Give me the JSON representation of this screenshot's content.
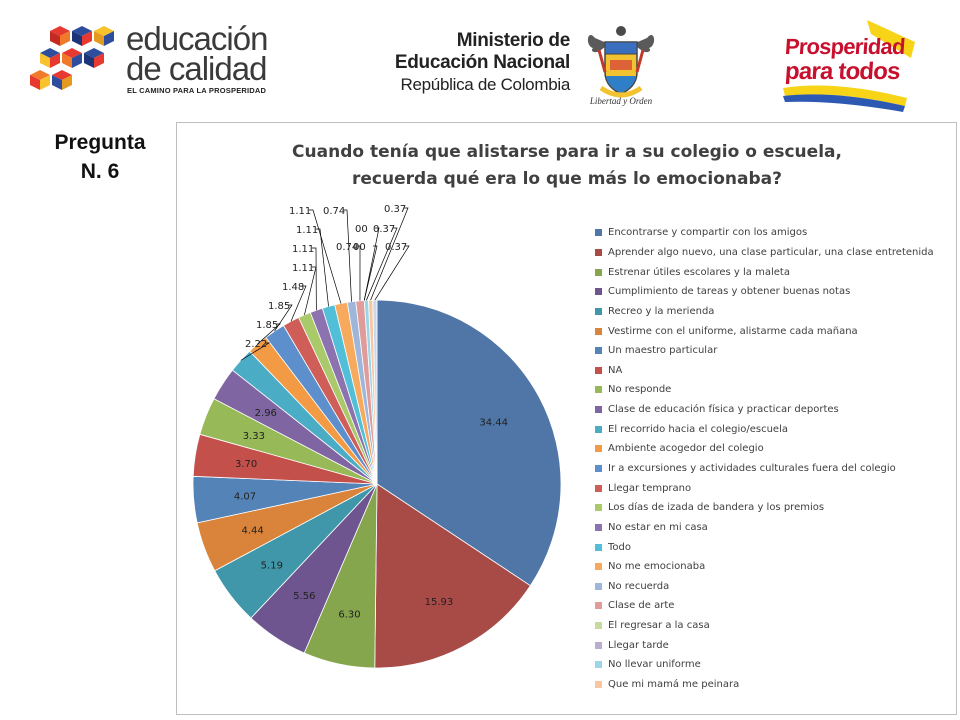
{
  "header": {
    "edu_logo": {
      "line1": "educación",
      "line2": "de calidad",
      "tagline": "EL CAMINO PARA LA PROSPERIDAD"
    },
    "ministry": {
      "line1": "Ministerio de",
      "line2": "Educación Nacional",
      "line3": "República de Colombia"
    },
    "seal_caption": "Libertad y Orden",
    "prosperity": {
      "line1": "Prosperidad",
      "line2": "para todos"
    }
  },
  "side_label": {
    "line1": "Pregunta",
    "line2": "N. 6"
  },
  "chart_data": {
    "type": "pie",
    "title_line1": "Cuando tenía que alistarse para ir  a su colegio o escuela,",
    "title_line2": "recuerda qué era lo que más lo emocionaba?",
    "legend_position": "right",
    "slices": [
      {
        "label": "Encontrarse y compartir con los amigos",
        "value": 34.44,
        "value_label": "34.44",
        "color": "#4f76a6"
      },
      {
        "label": "Aprender algo nuevo, una clase particular, una clase entretenida",
        "value": 15.93,
        "value_label": "15.93",
        "color": "#a84b47"
      },
      {
        "label": "Estrenar útiles escolares y la maleta",
        "value": 6.3,
        "value_label": "6.30",
        "color": "#86a64e"
      },
      {
        "label": "Cumplimiento de tareas y obtener buenas notas",
        "value": 5.56,
        "value_label": "5.56",
        "color": "#6e5590"
      },
      {
        "label": "Recreo y la merienda",
        "value": 5.19,
        "value_label": "5.19",
        "color": "#3f97a9"
      },
      {
        "label": "Vestirme con el uniforme, alistarme cada mañana",
        "value": 4.44,
        "value_label": "4.44",
        "color": "#d9843a"
      },
      {
        "label": "Un maestro particular",
        "value": 4.07,
        "value_label": "4.07",
        "color": "#5483b8"
      },
      {
        "label": "NA",
        "value": 3.7,
        "value_label": "3.70",
        "color": "#c4504b"
      },
      {
        "label": "No responde",
        "value": 3.33,
        "value_label": "3.33",
        "color": "#98b957"
      },
      {
        "label": "Clase de educación física y practicar deportes",
        "value": 2.96,
        "value_label": "2.96",
        "color": "#7f65a1"
      },
      {
        "label": "El recorrido hacia el colegio/escuela",
        "value": 2.22,
        "value_label": "2.22",
        "color": "#4bacc6"
      },
      {
        "label": "Ambiente acogedor del colegio",
        "value": 1.85,
        "value_label": "1.85",
        "color": "#f39a45"
      },
      {
        "label": "Ir a excursiones y actividades culturales fuera del colegio",
        "value": 1.85,
        "value_label": "1.85",
        "color": "#5c8fcb"
      },
      {
        "label": "Llegar temprano",
        "value": 1.48,
        "value_label": "1.48",
        "color": "#cf5d58"
      },
      {
        "label": "Los días de izada de bandera y los premios",
        "value": 1.11,
        "value_label": "1.11",
        "color": "#a9c96a"
      },
      {
        "label": "No estar en mi casa",
        "value": 1.11,
        "value_label": "1.11",
        "color": "#8c73b0"
      },
      {
        "label": "Todo",
        "value": 1.11,
        "value_label": "1.11",
        "color": "#52bfd8"
      },
      {
        "label": "No me emocionaba",
        "value": 1.11,
        "value_label": "1.11",
        "color": "#f7aa5e"
      },
      {
        "label": "No recuerda",
        "value": 0.74,
        "value_label": "0.74",
        "color": "#9db6d9"
      },
      {
        "label": "Clase de arte",
        "value": 0.74,
        "value_label": "0.74",
        "color": "#e09c9a"
      },
      {
        "label": "El regresar a la casa",
        "value": 0.0,
        "value_label": "00",
        "color": "#c7dba0"
      },
      {
        "label": "Llegar tarde",
        "value": 0.0,
        "value_label": "00",
        "color": "#b9aed0"
      },
      {
        "label": "No llevar uniforme",
        "value": 0.37,
        "value_label": "0.37",
        "color": "#9cd6e6"
      },
      {
        "label": "Que mi mamá me peinara",
        "value": 0.37,
        "value_label": "0.37",
        "color": "#f8c7a2"
      },
      {
        "label": "",
        "value": 0.37,
        "value_label": "0.37",
        "color": "#c9d8ec"
      }
    ]
  }
}
